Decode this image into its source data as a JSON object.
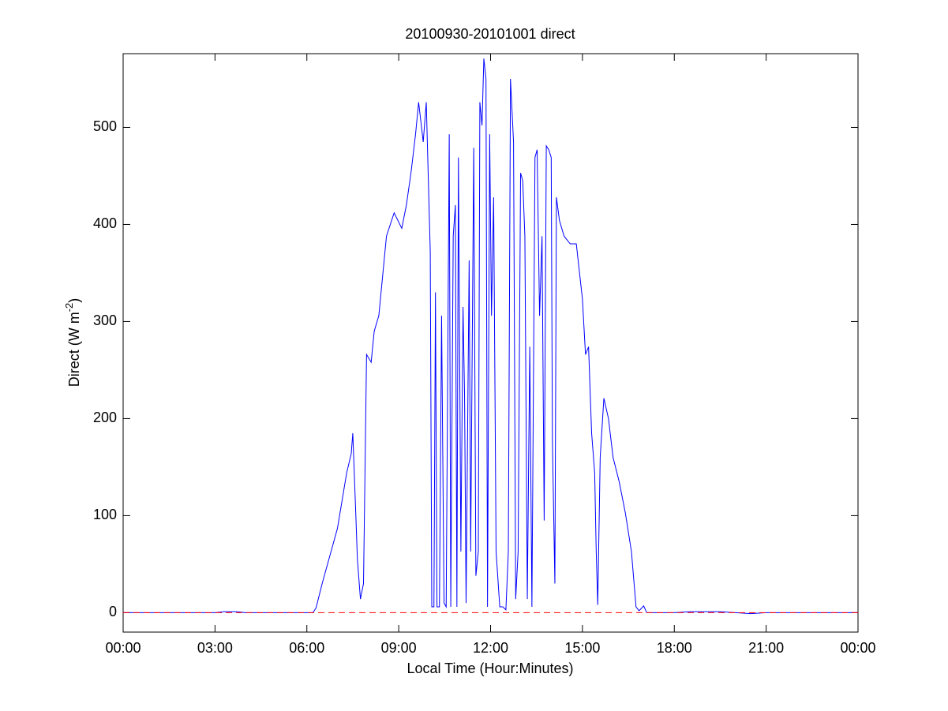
{
  "chart_data": {
    "type": "line",
    "title": "20100930-20101001 direct",
    "x_label": "Local Time (Hour:Minutes)",
    "y_label": [
      "Direct (W m",
      "-2",
      ")"
    ],
    "x": [
      0,
      3.0,
      3.3,
      3.7,
      4.0,
      6.2,
      6.3,
      6.5,
      7.0,
      7.3,
      7.45,
      7.5,
      7.6,
      7.65,
      7.75,
      7.85,
      7.95,
      8.1,
      8.2,
      8.35,
      8.6,
      8.85,
      9.1,
      9.25,
      9.4,
      9.55,
      9.65,
      9.8,
      9.9,
      10.03,
      10.08,
      10.15,
      10.2,
      10.25,
      10.33,
      10.4,
      10.48,
      10.55,
      10.65,
      10.7,
      10.78,
      10.85,
      10.9,
      10.95,
      11.03,
      11.1,
      11.15,
      11.2,
      11.3,
      11.35,
      11.45,
      11.52,
      11.6,
      11.65,
      11.72,
      11.78,
      11.85,
      11.9,
      11.97,
      12.03,
      12.1,
      12.18,
      12.3,
      12.4,
      12.5,
      12.58,
      12.65,
      12.75,
      12.82,
      12.9,
      12.98,
      13.05,
      13.12,
      13.2,
      13.28,
      13.35,
      13.45,
      13.52,
      13.6,
      13.68,
      13.75,
      13.82,
      13.9,
      13.98,
      14.02,
      14.1,
      14.15,
      14.25,
      14.4,
      14.6,
      14.8,
      15.0,
      15.1,
      15.2,
      15.3,
      15.4,
      15.45,
      15.5,
      15.58,
      15.7,
      15.85,
      16.0,
      16.2,
      16.4,
      16.6,
      16.75,
      16.85,
      17.0,
      17.1,
      18.0,
      18.5,
      19.5,
      20.0,
      20.5,
      21.0,
      24.0
    ],
    "series": [
      {
        "color": "#0000ff",
        "values": [
          0,
          0,
          1,
          1,
          0,
          0,
          5,
          30,
          87,
          144,
          164,
          185,
          100,
          55,
          14,
          30,
          266,
          258,
          290,
          306,
          388,
          412,
          396,
          420,
          453,
          493,
          526,
          485,
          526,
          372,
          6,
          6,
          330,
          6,
          6,
          306,
          10,
          6,
          493,
          6,
          388,
          420,
          6,
          469,
          63,
          315,
          225,
          10,
          363,
          63,
          479,
          38,
          63,
          526,
          502,
          571,
          550,
          6,
          493,
          306,
          428,
          63,
          6,
          6,
          3,
          63,
          550,
          485,
          14,
          63,
          453,
          445,
          388,
          14,
          274,
          6,
          469,
          477,
          306,
          388,
          95,
          481,
          477,
          469,
          176,
          30,
          428,
          404,
          388,
          380,
          380,
          323,
          266,
          274,
          185,
          144,
          63,
          8,
          160,
          221,
          200,
          160,
          135,
          103,
          63,
          6,
          2,
          7,
          0,
          0,
          1,
          1,
          0,
          -1,
          0,
          0
        ]
      }
    ],
    "reference_lines": [
      {
        "value": 0,
        "color": "#ff0000",
        "style": "dashed"
      }
    ],
    "xlim": [
      0,
      24
    ],
    "xticks": [
      {
        "value": 0,
        "label": "00:00"
      },
      {
        "value": 3,
        "label": "03:00"
      },
      {
        "value": 6,
        "label": "06:00"
      },
      {
        "value": 9,
        "label": "09:00"
      },
      {
        "value": 12,
        "label": "12:00"
      },
      {
        "value": 15,
        "label": "15:00"
      },
      {
        "value": 18,
        "label": "18:00"
      },
      {
        "value": 21,
        "label": "21:00"
      },
      {
        "value": 24,
        "label": "00:00"
      }
    ],
    "ylim": [
      -20,
      576
    ],
    "yticks": [
      0,
      100,
      200,
      300,
      400,
      500
    ],
    "grid": false
  }
}
